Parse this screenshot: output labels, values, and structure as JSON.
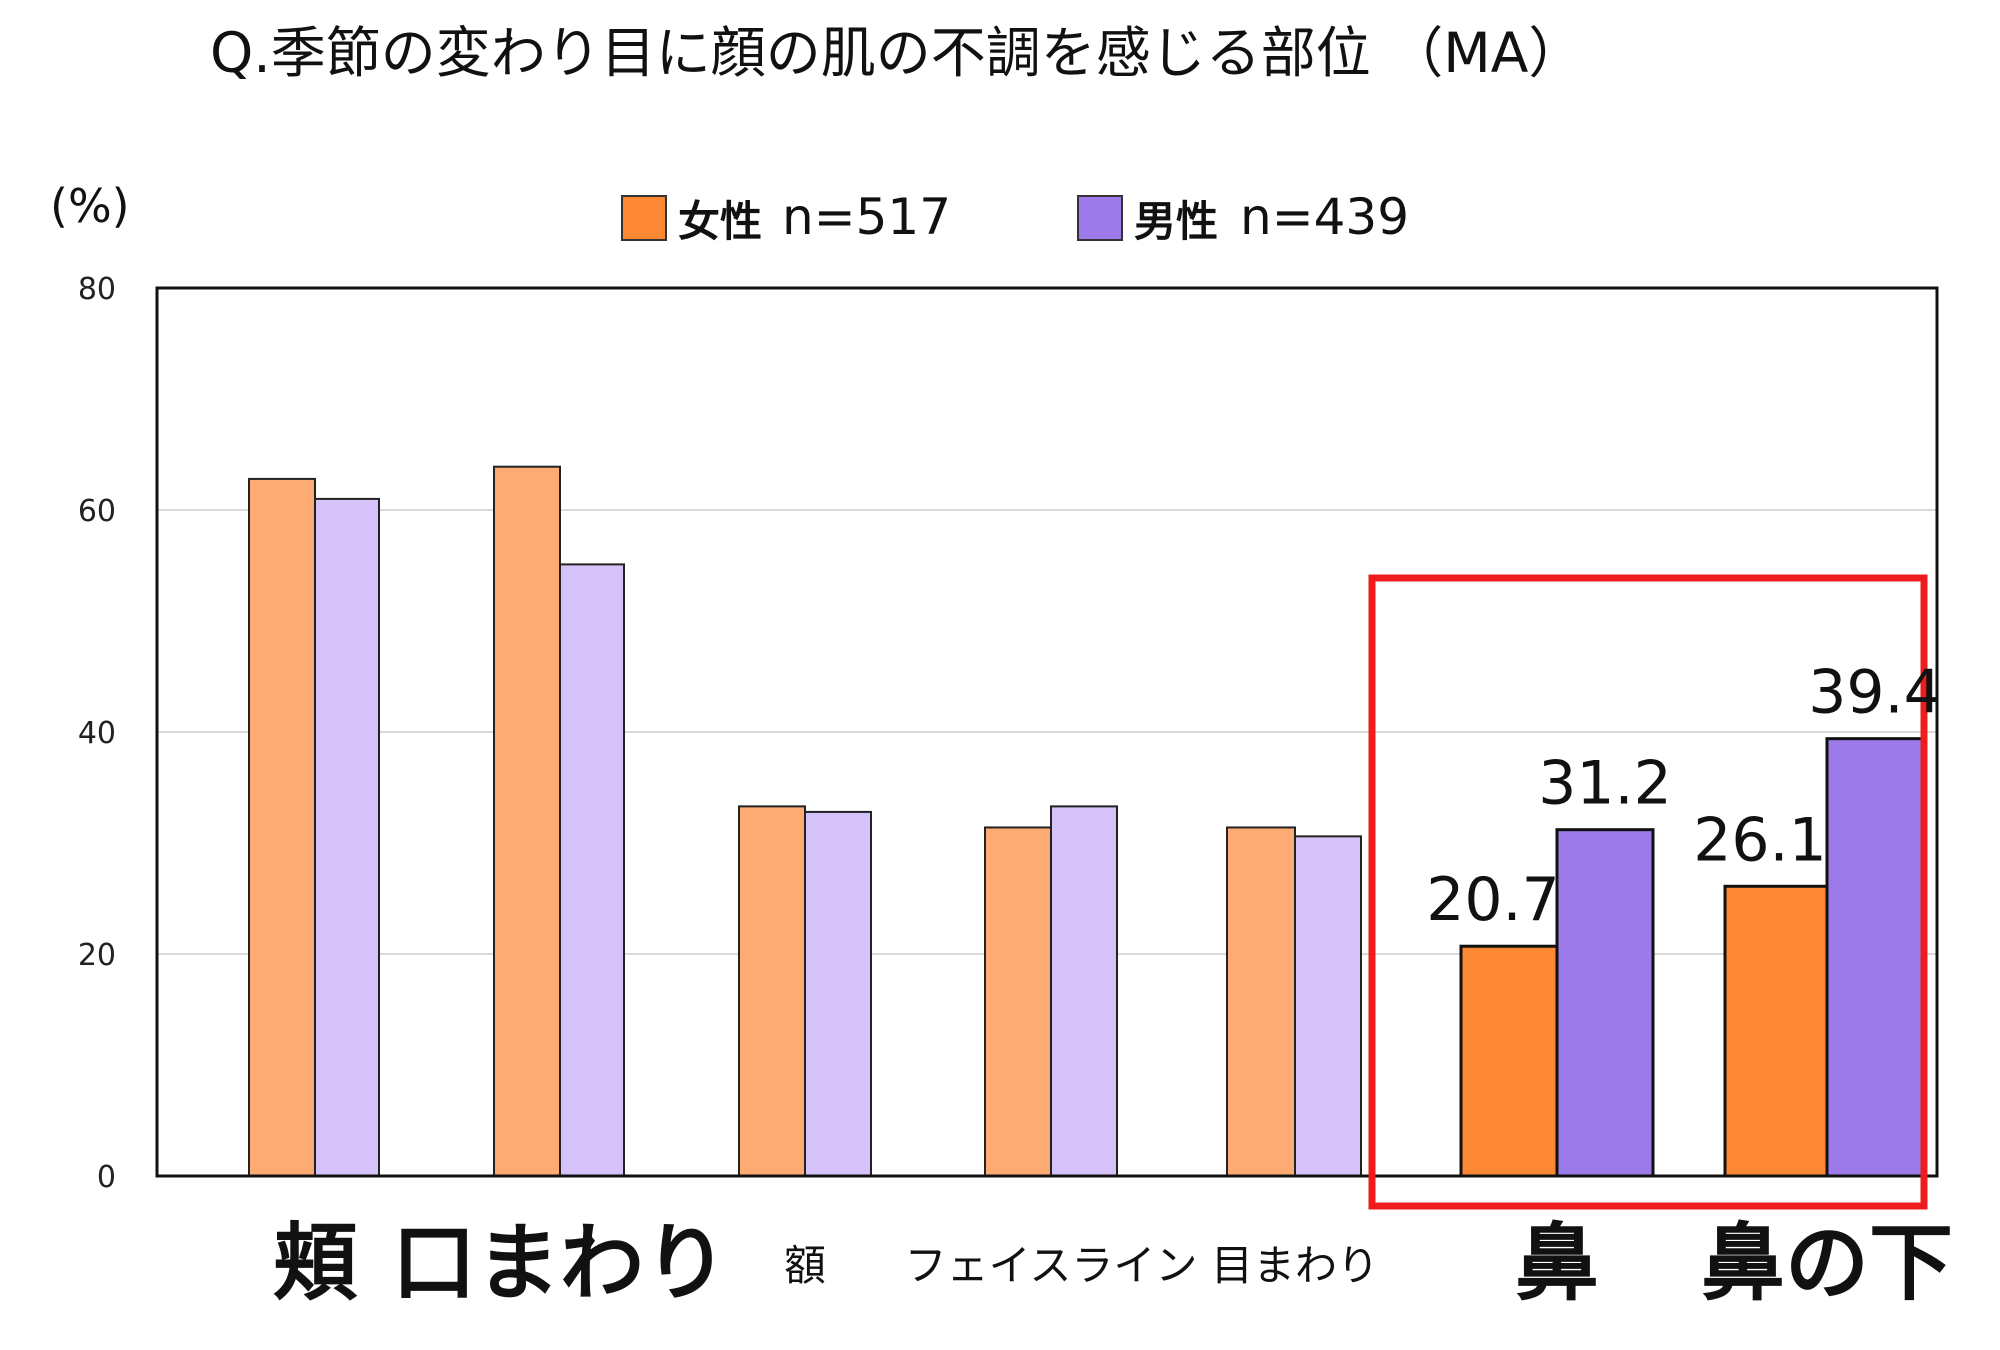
{
  "chart_data": {
    "type": "bar",
    "title": "Q.季節の変わり目に顔の肌の不調を感じる部位 （MA）",
    "ylabel": "(%)",
    "ylim": [
      0,
      80
    ],
    "yticks": [
      "0",
      "20",
      "40",
      "60",
      "80"
    ],
    "grid": true,
    "legend_position": "top",
    "categories": [
      "頬",
      "口まわり",
      "額",
      "フェイスライン",
      "目まわり",
      "鼻",
      "鼻の下"
    ],
    "category_emphasis": [
      "large",
      "large",
      "small",
      "small",
      "small",
      "large",
      "large"
    ],
    "highlight_categories": [
      "鼻",
      "鼻の下"
    ],
    "highlight_box_color": "#ee1c1c",
    "series": [
      {
        "name": "女性",
        "n_label": "n=517",
        "values": [
          62.8,
          63.9,
          33.3,
          31.4,
          31.4,
          20.7,
          26.1
        ],
        "color": "#fdaa73",
        "highlight_color": "#fd8833"
      },
      {
        "name": "男性",
        "n_label": "n=439",
        "values": [
          61.0,
          55.1,
          32.8,
          33.3,
          30.6,
          31.2,
          39.4
        ],
        "color": "#d4c2f8",
        "highlight_color": "#9d7aea"
      }
    ],
    "data_labels": [
      {
        "category": "鼻",
        "series": "女性",
        "text": "20.7"
      },
      {
        "category": "鼻",
        "series": "男性",
        "text": "31.2"
      },
      {
        "category": "鼻の下",
        "series": "女性",
        "text": "26.1"
      },
      {
        "category": "鼻の下",
        "series": "男性",
        "text": "39.4"
      }
    ]
  }
}
